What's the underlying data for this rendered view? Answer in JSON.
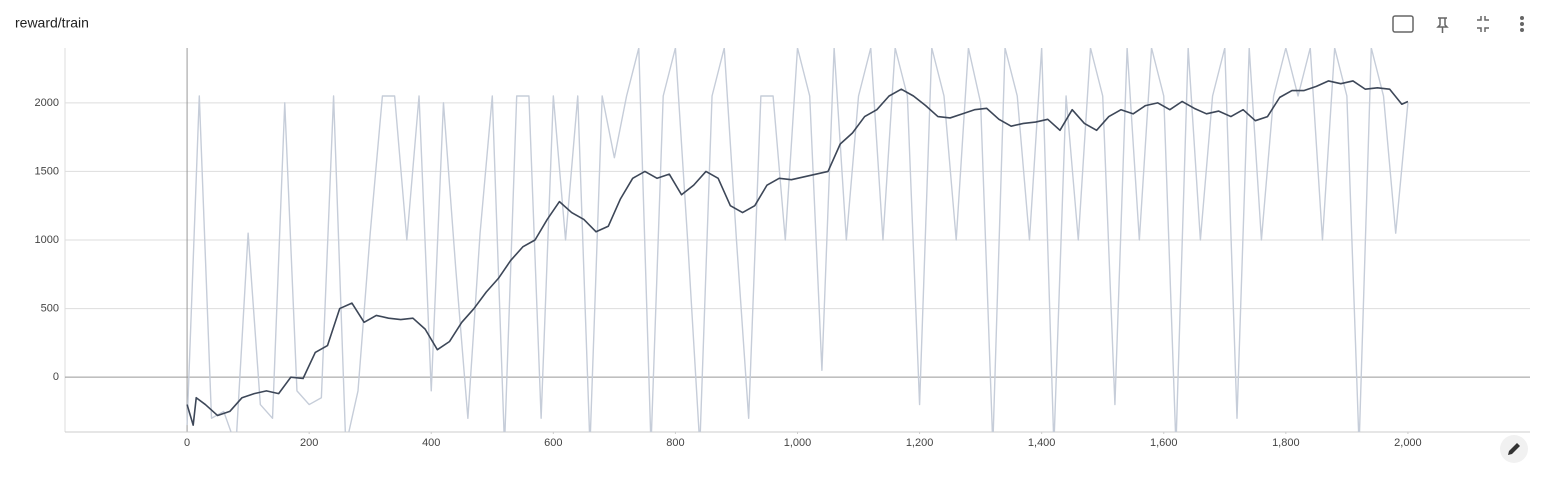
{
  "chart_data": {
    "type": "line",
    "title": "reward/train",
    "xlim": [
      -200,
      2200
    ],
    "ylim": [
      -400,
      2400
    ],
    "xticks": [
      0,
      200,
      400,
      600,
      800,
      {
        "value": 1000,
        "label": "1,000"
      },
      {
        "value": 1200,
        "label": "1,200"
      },
      {
        "value": 1400,
        "label": "1,400"
      },
      {
        "value": 1600,
        "label": "1,600"
      },
      {
        "value": 1800,
        "label": "1,800"
      },
      {
        "value": 2000,
        "label": "2,000"
      }
    ],
    "yticks": [
      0,
      500,
      1000,
      1500,
      2000
    ],
    "grid": true,
    "series": [
      {
        "color": "#c6cdd9",
        "x": [
          0,
          20,
          40,
          60,
          80,
          100,
          120,
          140,
          160,
          180,
          200,
          220,
          240,
          260,
          280,
          300,
          320,
          340,
          360,
          380,
          400,
          420,
          440,
          460,
          480,
          500,
          520,
          540,
          560,
          580,
          600,
          620,
          640,
          660,
          680,
          700,
          720,
          740,
          760,
          780,
          800,
          820,
          840,
          860,
          880,
          900,
          920,
          940,
          960,
          980,
          1000,
          1020,
          1040,
          1060,
          1080,
          1100,
          1120,
          1140,
          1160,
          1180,
          1200,
          1220,
          1240,
          1260,
          1280,
          1300,
          1320,
          1340,
          1360,
          1380,
          1400,
          1420,
          1440,
          1460,
          1480,
          1500,
          1520,
          1540,
          1560,
          1580,
          1600,
          1620,
          1640,
          1660,
          1680,
          1700,
          1720,
          1740,
          1760,
          1780,
          1800,
          1820,
          1840,
          1860,
          1880,
          1900,
          1920,
          1940,
          1960,
          1980,
          2000
        ],
        "values": [
          -350,
          2050,
          -300,
          -250,
          -500,
          1050,
          -200,
          -300,
          2000,
          -100,
          -200,
          -150,
          2050,
          -500,
          -100,
          1050,
          2050,
          2050,
          1000,
          2050,
          -100,
          2000,
          800,
          -300,
          1050,
          2050,
          -500,
          2050,
          2050,
          -300,
          2050,
          1000,
          2050,
          -500,
          2050,
          1600,
          2050,
          2400,
          -500,
          2050,
          2400,
          1000,
          -500,
          2050,
          2400,
          1000,
          -300,
          2050,
          2050,
          1000,
          2400,
          2050,
          50,
          2400,
          1000,
          2050,
          2400,
          1000,
          2400,
          2050,
          -200,
          2400,
          2050,
          1000,
          2400,
          2000,
          -500,
          2400,
          2050,
          1000,
          2400,
          -500,
          2050,
          1000,
          2400,
          2050,
          -200,
          2400,
          1000,
          2400,
          2050,
          -500,
          2400,
          1000,
          2050,
          2400,
          -300,
          2400,
          1000,
          2050,
          2400,
          2050,
          2400,
          1000,
          2400,
          2050,
          -500,
          2400,
          2050,
          1050,
          2000
        ]
      },
      {
        "color": "#3d4758",
        "x": [
          0,
          10,
          15,
          30,
          50,
          70,
          90,
          110,
          130,
          150,
          170,
          190,
          210,
          230,
          250,
          270,
          290,
          310,
          330,
          350,
          370,
          390,
          410,
          430,
          450,
          470,
          490,
          510,
          530,
          550,
          570,
          590,
          610,
          630,
          650,
          670,
          690,
          710,
          730,
          750,
          770,
          790,
          810,
          830,
          850,
          870,
          890,
          910,
          930,
          950,
          970,
          990,
          1010,
          1030,
          1050,
          1070,
          1090,
          1110,
          1130,
          1150,
          1170,
          1190,
          1210,
          1230,
          1250,
          1270,
          1290,
          1310,
          1330,
          1350,
          1370,
          1390,
          1410,
          1430,
          1450,
          1470,
          1490,
          1510,
          1530,
          1550,
          1570,
          1590,
          1610,
          1630,
          1650,
          1670,
          1690,
          1710,
          1730,
          1750,
          1770,
          1790,
          1810,
          1830,
          1850,
          1870,
          1890,
          1910,
          1930,
          1950,
          1970,
          1990,
          2000
        ],
        "values": [
          -200,
          -350,
          -150,
          -200,
          -280,
          -250,
          -150,
          -120,
          -100,
          -120,
          0,
          -10,
          180,
          230,
          500,
          540,
          400,
          450,
          430,
          420,
          430,
          350,
          200,
          260,
          400,
          500,
          620,
          720,
          850,
          950,
          1000,
          1150,
          1280,
          1200,
          1150,
          1060,
          1100,
          1300,
          1450,
          1500,
          1450,
          1480,
          1330,
          1400,
          1500,
          1450,
          1250,
          1200,
          1250,
          1400,
          1450,
          1440,
          1460,
          1480,
          1500,
          1700,
          1780,
          1900,
          1950,
          2050,
          2100,
          2050,
          1980,
          1900,
          1890,
          1920,
          1950,
          1960,
          1880,
          1830,
          1850,
          1860,
          1880,
          1800,
          1950,
          1850,
          1800,
          1900,
          1950,
          1920,
          1980,
          2000,
          1950,
          2010,
          1960,
          1920,
          1940,
          1900,
          1950,
          1870,
          1900,
          2040,
          2090,
          2090,
          2120,
          2160,
          2140,
          2160,
          2100,
          2110,
          2100,
          1990,
          2010
        ]
      }
    ]
  }
}
